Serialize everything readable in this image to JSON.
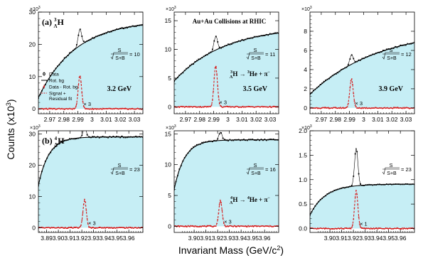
{
  "figure": {
    "ylabel_main": "Counts (x10",
    "ylabel_sup": "3",
    "ylabel_close": ")",
    "xlabel_main": "Invariant Mass (GeV/c",
    "xlabel_sup": "2",
    "xlabel_close": ")",
    "scale_exp_base": "×10",
    "scale_exp_pow": "3",
    "sig_num": "S",
    "sig_den": "S+B"
  },
  "legend": {
    "items": [
      "Data",
      "Rot. bg",
      "Data - Rot. bg",
      "Signal +",
      "Residual fit"
    ],
    "colors": {
      "data": "#000000",
      "fit": "#d61e1e",
      "bg_fill": "#c6eef5",
      "diff": "#d61e1e"
    }
  },
  "chart_data": [
    {
      "type": "line",
      "row": 0,
      "col": 0,
      "panel_label": "(a)",
      "nucleus_A": "3",
      "nucleus_sub": "Λ",
      "nucleus_sym": "H",
      "energy": "3.2 GeV",
      "significance": "10",
      "multiplier": "× 3",
      "xlim": [
        2.962,
        3.036
      ],
      "ylim": [
        -1.5,
        30
      ],
      "xticks": [
        2.97,
        2.98,
        2.99,
        3.0,
        3.01,
        3.02,
        3.03
      ],
      "xtick_labels": [
        "2.97",
        "2.98",
        "2.99",
        "3",
        "3.01",
        "3.02",
        "3.03"
      ],
      "yticks": [
        0,
        10,
        20,
        30
      ],
      "ytick_labels": [
        "0",
        "10",
        "20",
        "30"
      ],
      "bg_start": 2.962,
      "bg_rise": 0.012,
      "bg_y0": 3.5,
      "bg_ymax": 27.5,
      "bg_curv": 0.016,
      "peak_x": 2.9914,
      "peak_sigma": 0.0012,
      "peak_amp": 5.2,
      "residual_amp": 2.0
    },
    {
      "type": "line",
      "row": 0,
      "col": 1,
      "title": "Au+Au Collisions at RHIC",
      "energy": "3.5 GeV",
      "decay": "→",
      "decay_a": "3",
      "decay_b": "3",
      "decay_text1": "H",
      "decay_text2": "He +",
      "decay_text3": "π",
      "significance": "11",
      "multiplier": "× 3",
      "xlim": [
        2.962,
        3.036
      ],
      "ylim": [
        -1.2,
        16.5
      ],
      "xticks": [
        2.97,
        2.98,
        2.99,
        3.0,
        3.01,
        3.02,
        3.03
      ],
      "xtick_labels": [
        "2.97",
        "2.98",
        "2.99",
        "3",
        "3.01",
        "3.02",
        "3.03"
      ],
      "yticks": [
        0,
        5,
        10,
        15
      ],
      "ytick_labels": [
        "0",
        "5",
        "10",
        "15"
      ],
      "bg_start": 2.962,
      "bg_rise": 0.016,
      "bg_y0": 4.5,
      "bg_ymax": 14.0,
      "bg_curv": 0.02,
      "peak_x": 2.9914,
      "peak_sigma": 0.0012,
      "peak_amp": 2.4,
      "residual_amp": 3.0
    },
    {
      "type": "line",
      "row": 0,
      "col": 2,
      "energy": "3.9 GeV",
      "significance": "12",
      "multiplier": "× 3",
      "xlim": [
        2.962,
        3.036
      ],
      "ylim": [
        -0.6,
        10
      ],
      "xticks": [
        2.97,
        2.98,
        2.99,
        3.0,
        3.01,
        3.02,
        3.03
      ],
      "xtick_labels": [
        "2.97",
        "2.98",
        "2.99",
        "3",
        "3.01",
        "3.02",
        "3.03"
      ],
      "yticks": [
        0,
        2,
        4,
        6,
        8
      ],
      "ytick_labels": [
        "0",
        "2",
        "4",
        "6",
        "8"
      ],
      "bg_start": 2.9625,
      "bg_rise": 0.022,
      "bg_y0": 1.5,
      "bg_ymax": 8.3,
      "bg_curv": 0.004,
      "peak_x": 2.9914,
      "peak_sigma": 0.0012,
      "peak_amp": 0.95,
      "residual_amp": 3.2
    },
    {
      "type": "line",
      "row": 1,
      "col": 0,
      "panel_label": "(b)",
      "nucleus_A": "4",
      "nucleus_sub": "Λ",
      "nucleus_sym": "H",
      "significance": "23",
      "multiplier": "× 3",
      "xlim": [
        3.883,
        3.972
      ],
      "ylim": [
        -1.5,
        31
      ],
      "xticks": [
        3.89,
        3.9,
        3.91,
        3.92,
        3.93,
        3.94,
        3.95,
        3.96
      ],
      "xtick_labels": [
        "3.89",
        "3.90",
        "3.91",
        "3.92",
        "3.93",
        "3.94",
        "3.95",
        "3.96"
      ],
      "yticks": [
        0,
        10,
        20,
        30
      ],
      "ytick_labels": [
        "0",
        "10",
        "20",
        "30"
      ],
      "bg_start": 3.883,
      "bg_rise": 0.004,
      "bg_y0": 13.5,
      "bg_ymax": 29.0,
      "bg_curv": 0.05,
      "peak_x": 3.9224,
      "peak_sigma": 0.0014,
      "peak_amp": 3.2,
      "residual_amp": 2.8
    },
    {
      "type": "line",
      "row": 1,
      "col": 1,
      "decay": "→",
      "decay_a": "4",
      "decay_b": "4",
      "decay_text1": "H",
      "decay_text2": "He +",
      "decay_text3": "π",
      "significance": "16",
      "multiplier": "× 3",
      "xlim": [
        3.883,
        3.972
      ],
      "ylim": [
        -1.0,
        15.5
      ],
      "xticks": [
        3.9,
        3.91,
        3.92,
        3.93,
        3.94,
        3.95,
        3.96
      ],
      "xtick_labels": [
        "3.90",
        "3.91",
        "3.92",
        "3.93",
        "3.94",
        "3.95",
        "3.96"
      ],
      "yticks": [
        0,
        5,
        10,
        15
      ],
      "ytick_labels": [
        "0",
        "5",
        "10",
        "15"
      ],
      "bg_start": 3.883,
      "bg_rise": 0.004,
      "bg_y0": 6.0,
      "bg_ymax": 14.0,
      "bg_curv": 0.05,
      "peak_x": 3.9224,
      "peak_sigma": 0.0014,
      "peak_amp": 1.4,
      "residual_amp": 3.0
    },
    {
      "type": "line",
      "row": 1,
      "col": 2,
      "significance": "23",
      "multiplier": "× 1",
      "xlim": [
        3.883,
        3.972
      ],
      "ylim": [
        -0.08,
        2.0
      ],
      "xticks": [
        3.9,
        3.91,
        3.92,
        3.93,
        3.94,
        3.95,
        3.96
      ],
      "xtick_labels": [
        "3.90",
        "3.91",
        "3.92",
        "3.93",
        "3.94",
        "3.95",
        "3.96"
      ],
      "yticks": [
        0.0,
        0.5,
        1.0,
        1.5,
        2.0
      ],
      "ytick_labels": [
        "0.0",
        "0.5",
        "1.0",
        "1.5",
        "2.0"
      ],
      "bg_start": 3.883,
      "bg_rise": 0.006,
      "bg_y0": 0.28,
      "bg_ymax": 0.9,
      "bg_curv": 0.01,
      "peak_x": 3.9224,
      "peak_sigma": 0.0014,
      "peak_amp": 0.78,
      "residual_amp": 1.0
    }
  ]
}
